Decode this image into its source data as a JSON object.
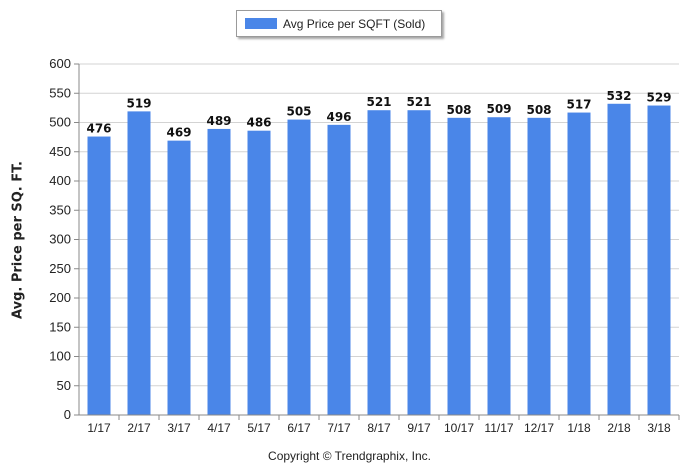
{
  "legend": {
    "label": "Avg Price per SQFT (Sold)"
  },
  "copyright": "Copyright © Trendgraphix, Inc.",
  "colors": {
    "bar": "#4a86e8",
    "grid": "#d3d3d3",
    "axis": "#888888"
  },
  "chart_data": {
    "type": "bar",
    "categories": [
      "1/17",
      "2/17",
      "3/17",
      "4/17",
      "5/17",
      "6/17",
      "7/17",
      "8/17",
      "9/17",
      "10/17",
      "11/17",
      "12/17",
      "1/18",
      "2/18",
      "3/18"
    ],
    "series": [
      {
        "name": "Avg Price per SQFT (Sold)",
        "values": [
          476,
          519,
          469,
          489,
          486,
          505,
          496,
          521,
          521,
          508,
          509,
          508,
          517,
          532,
          529
        ]
      }
    ],
    "xlabel": "",
    "ylabel": "Avg. Price per SQ. FT.",
    "ylim": [
      0,
      600
    ],
    "yticks": [
      0,
      50,
      100,
      150,
      200,
      250,
      300,
      350,
      400,
      450,
      500,
      550,
      600
    ],
    "grid": true,
    "legend_position": "top-center",
    "data_labels": true
  }
}
